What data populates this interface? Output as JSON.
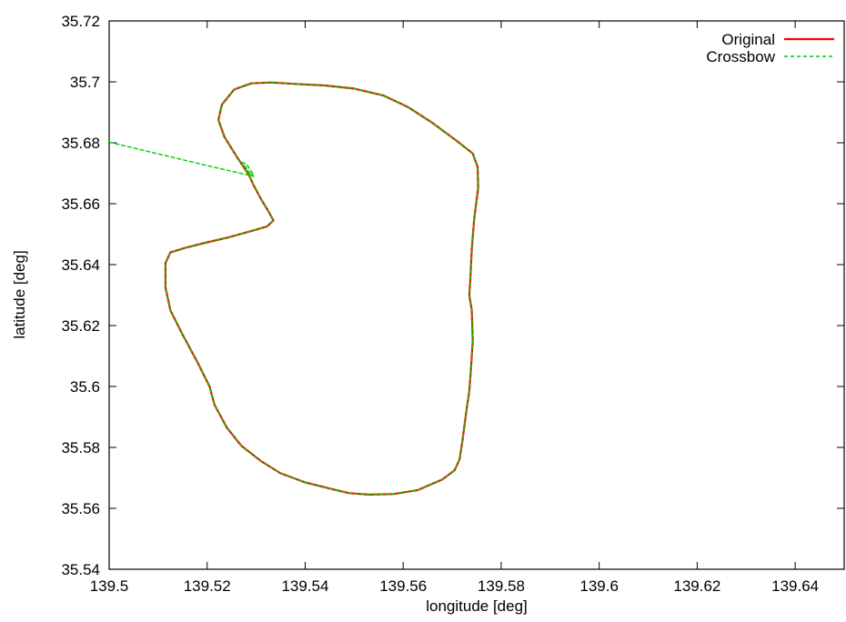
{
  "chart_data": {
    "type": "line",
    "title": "",
    "xlabel": "longitude [deg]",
    "ylabel": "latitude [deg]",
    "xlim": [
      139.5,
      139.65
    ],
    "ylim": [
      35.54,
      35.72
    ],
    "xticks": [
      139.5,
      139.52,
      139.54,
      139.56,
      139.58,
      139.6,
      139.62,
      139.64
    ],
    "xtick_labels": [
      "139.5",
      "139.52",
      "139.54",
      "139.56",
      "139.58",
      "139.6",
      "139.62",
      "139.64"
    ],
    "yticks": [
      35.54,
      35.56,
      35.58,
      35.6,
      35.62,
      35.64,
      35.66,
      35.68,
      35.7,
      35.72
    ],
    "ytick_labels": [
      "35.54",
      "35.56",
      "35.58",
      "35.6",
      "35.62",
      "35.64",
      "35.66",
      "35.68",
      "35.7",
      "35.72"
    ],
    "grid": false,
    "legend_position": "top-right",
    "series": [
      {
        "name": "Original",
        "color": "#ff0000",
        "dash": "solid",
        "x": [
          139.5285,
          139.526,
          139.5235,
          139.5223,
          139.523,
          139.5255,
          139.529,
          139.533,
          139.538,
          139.544,
          139.55,
          139.556,
          139.561,
          139.566,
          139.571,
          139.5742,
          139.5752,
          139.5753,
          139.5745,
          139.574,
          139.5737,
          139.5735,
          139.574,
          139.5742,
          139.5738,
          139.5735,
          139.573,
          139.5725,
          139.572,
          139.5715,
          139.5705,
          139.568,
          139.563,
          139.558,
          139.553,
          139.549,
          139.545,
          139.54,
          139.535,
          139.531,
          139.527,
          139.524,
          139.5215,
          139.5205,
          139.518,
          139.515,
          139.5125,
          139.5115,
          139.5115,
          139.5125,
          139.5155,
          139.52,
          139.5245,
          139.529,
          139.5322,
          139.5335,
          139.5325,
          139.531,
          139.5295,
          139.5285
        ],
        "y": [
          35.6695,
          35.6755,
          35.682,
          35.6875,
          35.6925,
          35.6975,
          35.6995,
          35.6998,
          35.6993,
          35.6988,
          35.6978,
          35.6955,
          35.6917,
          35.6865,
          35.6805,
          35.6765,
          35.672,
          35.665,
          35.655,
          35.645,
          35.635,
          35.63,
          35.625,
          35.615,
          35.605,
          35.5985,
          35.593,
          35.587,
          35.581,
          35.576,
          35.5725,
          35.5695,
          35.566,
          35.5647,
          35.5645,
          35.565,
          35.5665,
          35.5685,
          35.5715,
          35.5755,
          35.5805,
          35.5865,
          35.594,
          35.6,
          35.608,
          35.617,
          35.625,
          35.6325,
          35.6405,
          35.644,
          35.6455,
          35.6473,
          35.649,
          35.651,
          35.6525,
          35.6545,
          35.6575,
          35.6615,
          35.666,
          35.6695
        ]
      },
      {
        "name": "Crossbow",
        "color": "#00cc00",
        "dash": "dashed",
        "x": [
          139.5,
          139.52,
          139.5295,
          139.5285,
          139.5272,
          139.528,
          139.5295,
          139.5285,
          139.526,
          139.5235,
          139.5223,
          139.523,
          139.5255,
          139.529,
          139.533,
          139.538,
          139.544,
          139.55,
          139.556,
          139.561,
          139.566,
          139.571,
          139.5742,
          139.5752,
          139.5753,
          139.5745,
          139.574,
          139.5737,
          139.5735,
          139.574,
          139.5742,
          139.5738,
          139.5735,
          139.573,
          139.5725,
          139.572,
          139.5715,
          139.5705,
          139.568,
          139.563,
          139.558,
          139.553,
          139.549,
          139.545,
          139.54,
          139.535,
          139.531,
          139.527,
          139.524,
          139.5215,
          139.5205,
          139.518,
          139.515,
          139.5125,
          139.5115,
          139.5115,
          139.5125,
          139.5155,
          139.52,
          139.5245,
          139.529,
          139.5322,
          139.5335,
          139.5325,
          139.531,
          139.5295,
          139.5285
        ],
        "y": [
          35.6802,
          35.6725,
          35.669,
          35.6705,
          35.6735,
          35.673,
          35.6695,
          35.6695,
          35.6755,
          35.682,
          35.6875,
          35.6925,
          35.6975,
          35.6995,
          35.6998,
          35.6993,
          35.6988,
          35.6978,
          35.6955,
          35.6917,
          35.6865,
          35.6805,
          35.6765,
          35.672,
          35.665,
          35.655,
          35.645,
          35.635,
          35.63,
          35.625,
          35.615,
          35.605,
          35.5985,
          35.593,
          35.587,
          35.581,
          35.576,
          35.5725,
          35.5695,
          35.566,
          35.5647,
          35.5645,
          35.565,
          35.5665,
          35.5685,
          35.5715,
          35.5755,
          35.5805,
          35.5865,
          35.594,
          35.6,
          35.608,
          35.617,
          35.625,
          35.6325,
          35.6405,
          35.644,
          35.6455,
          35.6473,
          35.649,
          35.651,
          35.6525,
          35.6545,
          35.6575,
          35.6615,
          35.666,
          35.6695
        ]
      }
    ]
  }
}
